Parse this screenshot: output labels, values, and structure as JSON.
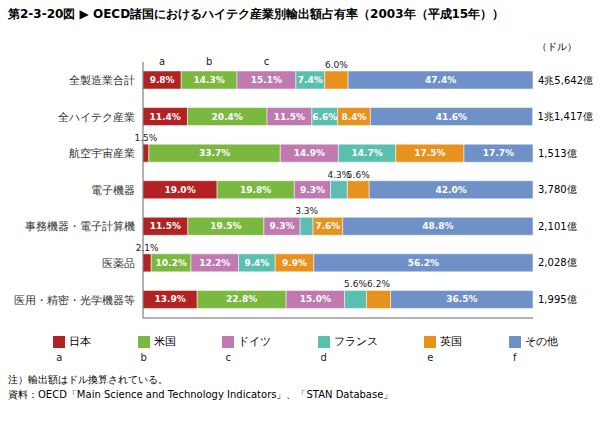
{
  "chart_data": {
    "type": "bar",
    "orientation": "horizontal",
    "stacked": true,
    "data_labels": true,
    "title": "第2-3-20図 ▶ OECD諸国におけるハイテク産業別輸出額占有率（2003年（平成15年））",
    "unit": "（ドル）",
    "categories": [
      "全製造業合計",
      "全ハイテク産業",
      "航空宇宙産業",
      "電子機器",
      "事務機器・電子計算機",
      "医薬品",
      "医用・精密・光学機器等"
    ],
    "annotations": [
      {
        "category": "全製造業合計",
        "text": "4兆5,642億"
      },
      {
        "category": "全ハイテク産業",
        "text": "1兆1,417億"
      },
      {
        "category": "航空宇宙産業",
        "text": "1,513億"
      },
      {
        "category": "電子機器",
        "text": "3,780億"
      },
      {
        "category": "事務機器・電子計算機",
        "text": "2,101億"
      },
      {
        "category": "医薬品",
        "text": "2,028億"
      },
      {
        "category": "医用・精密・光学機器等",
        "text": "1,995億"
      }
    ],
    "column_headers": [
      "a",
      "b",
      "c"
    ],
    "series": [
      {
        "name": "日本",
        "letter": "a",
        "color": "#b22222",
        "values": [
          9.8,
          11.4,
          1.5,
          19.0,
          11.5,
          2.1,
          13.9
        ],
        "value_labels": [
          "9.8%",
          "11.4%",
          "1.5%",
          "19.0%",
          "11.5%",
          "2.1%",
          "13.9%"
        ]
      },
      {
        "name": "米国",
        "letter": "b",
        "color": "#7ab840",
        "values": [
          14.3,
          20.4,
          33.7,
          19.8,
          19.5,
          10.2,
          22.8
        ],
        "value_labels": [
          "14.3%",
          "20.4%",
          "33.7%",
          "19.8%",
          "19.5%",
          "10.2%",
          "22.8%"
        ]
      },
      {
        "name": "ドイツ",
        "letter": "c",
        "color": "#c07ab0",
        "values": [
          15.1,
          11.5,
          14.9,
          9.3,
          9.3,
          12.2,
          15.0
        ],
        "value_labels": [
          "15.1%",
          "11.5%",
          "14.9%",
          "9.3%",
          "9.3%",
          "12.2%",
          "15.0%"
        ]
      },
      {
        "name": "フランス",
        "letter": "d",
        "color": "#5bbfb0",
        "values": [
          7.4,
          6.6,
          14.7,
          4.3,
          3.3,
          9.4,
          5.6
        ],
        "value_labels": [
          "7.4%",
          "6.6%",
          "14.7%",
          "4.3%",
          "3.3%",
          "9.4%",
          "5.6%"
        ]
      },
      {
        "name": "英国",
        "letter": "e",
        "color": "#e8921e",
        "values": [
          6.0,
          8.4,
          17.5,
          5.6,
          7.6,
          9.9,
          6.2
        ],
        "value_labels": [
          "6.0%",
          "8.4%",
          "17.5%",
          "5.6%",
          "7.6%",
          "9.9%",
          "6.2%"
        ]
      },
      {
        "name": "その他",
        "letter": "f",
        "color": "#7090c8",
        "values": [
          47.4,
          41.6,
          17.7,
          42.0,
          48.8,
          56.2,
          36.5
        ],
        "value_labels": [
          "47.4%",
          "41.6%",
          "17.7%",
          "42.0%",
          "48.8%",
          "56.2%",
          "36.5%"
        ]
      }
    ],
    "xlim": [
      0,
      100
    ],
    "grid": false,
    "tick_labels": "y",
    "legend": "bottom",
    "notes": [
      "注）輸出額はドル換算されている。",
      "資料：OECD「Main Science and Technology Indicators」、「STAN Database」"
    ]
  }
}
